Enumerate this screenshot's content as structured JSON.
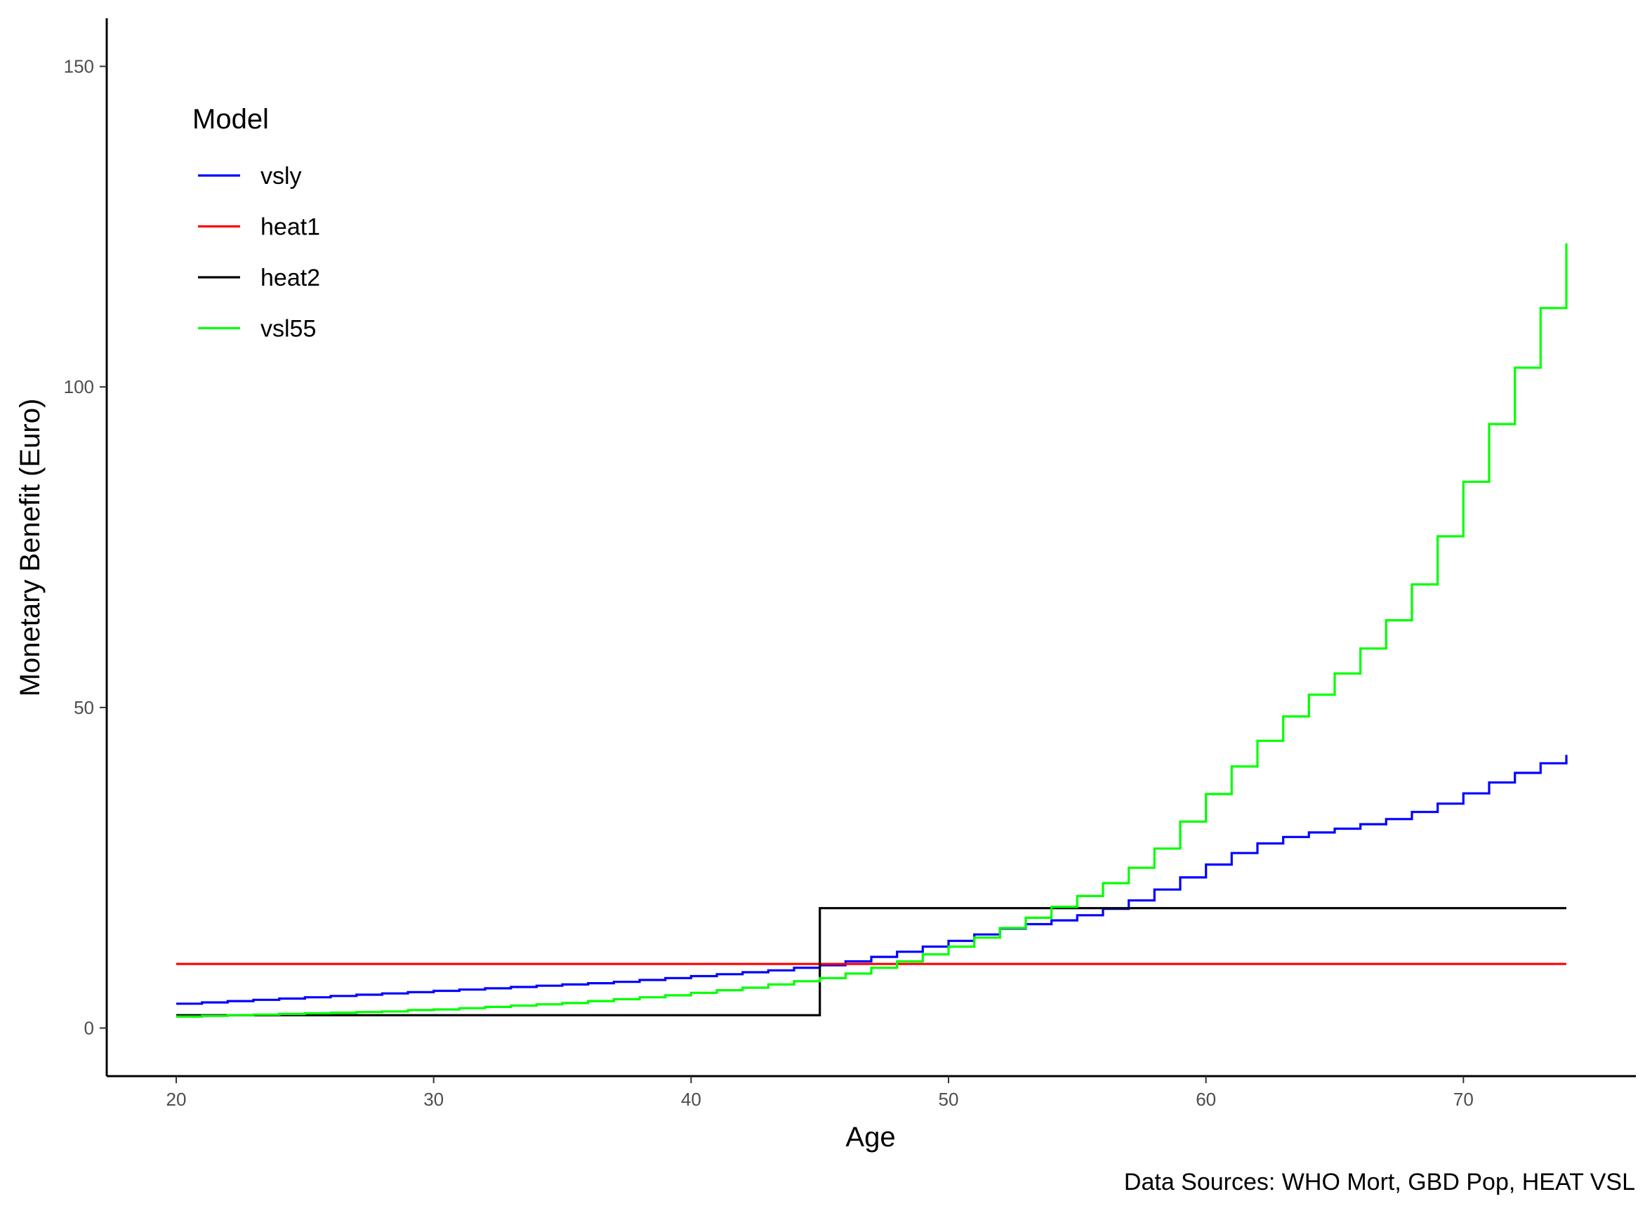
{
  "chart_data": {
    "type": "line",
    "step": true,
    "xlabel": "Age",
    "ylabel": "Monetary Benefit (Euro)",
    "caption": "Data Sources: WHO Mort, GBD Pop, HEAT VSL",
    "xlim": [
      17.3,
      76.7
    ],
    "ylim": [
      -7.5,
      157.5
    ],
    "x_ticks": [
      20,
      30,
      40,
      50,
      60,
      70
    ],
    "y_ticks": [
      0,
      50,
      100,
      150
    ],
    "grid": false,
    "legend": {
      "title": "Model",
      "placement": "top-left"
    },
    "x": [
      20,
      21,
      22,
      23,
      24,
      25,
      26,
      27,
      28,
      29,
      30,
      31,
      32,
      33,
      34,
      35,
      36,
      37,
      38,
      39,
      40,
      41,
      42,
      43,
      44,
      45,
      46,
      47,
      48,
      49,
      50,
      51,
      52,
      53,
      54,
      55,
      56,
      57,
      58,
      59,
      60,
      61,
      62,
      63,
      64,
      65,
      66,
      67,
      68,
      69,
      70,
      71,
      72,
      73,
      74
    ],
    "series": [
      {
        "name": "vsly",
        "color": "#0000ff",
        "values": [
          3.8,
          4.0,
          4.2,
          4.4,
          4.6,
          4.8,
          5.0,
          5.2,
          5.4,
          5.6,
          5.8,
          6.0,
          6.2,
          6.4,
          6.6,
          6.8,
          7.0,
          7.2,
          7.5,
          7.8,
          8.1,
          8.4,
          8.7,
          9.0,
          9.4,
          9.8,
          10.4,
          11.1,
          11.9,
          12.7,
          13.6,
          14.6,
          15.5,
          16.2,
          16.8,
          17.6,
          18.6,
          19.9,
          21.6,
          23.5,
          25.5,
          27.3,
          28.8,
          29.8,
          30.5,
          31.1,
          31.8,
          32.6,
          33.7,
          35.0,
          36.6,
          38.3,
          39.8,
          41.3,
          42.6
        ]
      },
      {
        "name": "heat1",
        "color": "#ff0000",
        "values": [
          10,
          10,
          10,
          10,
          10,
          10,
          10,
          10,
          10,
          10,
          10,
          10,
          10,
          10,
          10,
          10,
          10,
          10,
          10,
          10,
          10,
          10,
          10,
          10,
          10,
          10,
          10,
          10,
          10,
          10,
          10,
          10,
          10,
          10,
          10,
          10,
          10,
          10,
          10,
          10,
          10,
          10,
          10,
          10,
          10,
          10,
          10,
          10,
          10,
          10,
          10,
          10,
          10,
          10,
          10
        ]
      },
      {
        "name": "heat2",
        "color": "#000000",
        "values": [
          2,
          2,
          2,
          2,
          2,
          2,
          2,
          2,
          2,
          2,
          2,
          2,
          2,
          2,
          2,
          2,
          2,
          2,
          2,
          2,
          2,
          2,
          2,
          2,
          2,
          18.7,
          18.7,
          18.7,
          18.7,
          18.7,
          18.7,
          18.7,
          18.7,
          18.7,
          18.7,
          18.7,
          18.7,
          18.7,
          18.7,
          18.7,
          18.7,
          18.7,
          18.7,
          18.7,
          18.7,
          18.7,
          18.7,
          18.7,
          18.7,
          18.7,
          18.7,
          18.7,
          18.7,
          18.7,
          18.7
        ]
      },
      {
        "name": "vsl55",
        "color": "#00ff00",
        "values": [
          1.8,
          1.9,
          2.0,
          2.1,
          2.2,
          2.3,
          2.4,
          2.5,
          2.6,
          2.8,
          2.9,
          3.1,
          3.3,
          3.5,
          3.7,
          3.9,
          4.2,
          4.5,
          4.8,
          5.1,
          5.5,
          5.9,
          6.3,
          6.8,
          7.3,
          7.8,
          8.5,
          9.4,
          10.4,
          11.5,
          12.7,
          14.1,
          15.6,
          17.2,
          18.9,
          20.6,
          22.6,
          25.0,
          28.0,
          32.2,
          36.5,
          40.8,
          44.8,
          48.6,
          52.0,
          55.3,
          59.2,
          63.6,
          69.2,
          76.7,
          85.2,
          94.2,
          103.0,
          112.3,
          122.4
        ]
      }
    ]
  }
}
